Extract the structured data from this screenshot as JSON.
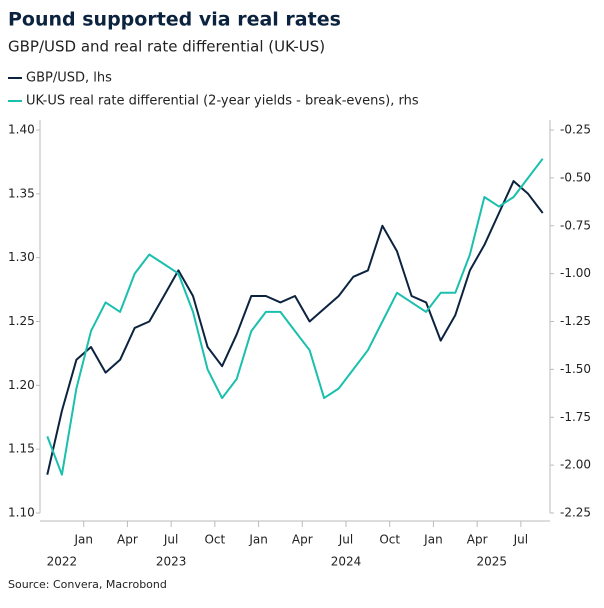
{
  "chart_data": {
    "type": "line",
    "title": "Pound supported via real rates",
    "subtitle": "GBP/USD and real rate differential (UK-US)",
    "source": "Source: Convera, Macrobond",
    "x": [
      "2022-10",
      "2022-11",
      "2022-12",
      "2023-01",
      "2023-02",
      "2023-03",
      "2023-04",
      "2023-05",
      "2023-06",
      "2023-07",
      "2023-08",
      "2023-09",
      "2023-10",
      "2023-11",
      "2023-12",
      "2024-01",
      "2024-02",
      "2024-03",
      "2024-04",
      "2024-05",
      "2024-06",
      "2024-07",
      "2024-08",
      "2024-09",
      "2024-10",
      "2024-11",
      "2024-12",
      "2025-01",
      "2025-02",
      "2025-03",
      "2025-04",
      "2025-05",
      "2025-06",
      "2025-07",
      "2025-08"
    ],
    "series": [
      {
        "name": "GBP/USD, lhs",
        "color": "#0c2340",
        "axis": "y",
        "values": [
          1.13,
          1.18,
          1.22,
          1.23,
          1.21,
          1.22,
          1.245,
          1.25,
          1.27,
          1.29,
          1.27,
          1.23,
          1.215,
          1.24,
          1.27,
          1.27,
          1.265,
          1.27,
          1.25,
          1.26,
          1.27,
          1.285,
          1.29,
          1.325,
          1.305,
          1.27,
          1.265,
          1.235,
          1.255,
          1.29,
          1.31,
          1.335,
          1.36,
          1.35,
          1.335
        ]
      },
      {
        "name": "UK-US real rate differential (2-year yields - break-evens), rhs",
        "color": "#1bbfae",
        "axis": "y2",
        "values": [
          -1.85,
          -2.05,
          -1.6,
          -1.3,
          -1.15,
          -1.2,
          -1.0,
          -0.9,
          -0.95,
          -1.0,
          -1.2,
          -1.5,
          -1.65,
          -1.55,
          -1.3,
          -1.2,
          -1.2,
          -1.3,
          -1.4,
          -1.65,
          -1.6,
          -1.5,
          -1.4,
          -1.25,
          -1.1,
          -1.15,
          -1.2,
          -1.1,
          -1.1,
          -0.9,
          -0.6,
          -0.65,
          -0.6,
          -0.5,
          -0.4
        ]
      }
    ],
    "xlim": [
      "2022-10",
      "2025-09"
    ],
    "xticks": [
      {
        "value": "2023-01",
        "label": "Jan"
      },
      {
        "value": "2023-04",
        "label": "Apr"
      },
      {
        "value": "2023-07",
        "label": "Jul"
      },
      {
        "value": "2023-10",
        "label": "Oct"
      },
      {
        "value": "2024-01",
        "label": "Jan"
      },
      {
        "value": "2024-04",
        "label": "Apr"
      },
      {
        "value": "2024-07",
        "label": "Jul"
      },
      {
        "value": "2024-10",
        "label": "Oct"
      },
      {
        "value": "2025-01",
        "label": "Jan"
      },
      {
        "value": "2025-04",
        "label": "Apr"
      },
      {
        "value": "2025-07",
        "label": "Jul"
      }
    ],
    "years": [
      "2022",
      "2023",
      "2024",
      "2025"
    ],
    "ylim": [
      1.1,
      1.4
    ],
    "yticks": [
      {
        "value": 1.1,
        "label": "1.10"
      },
      1.15,
      {
        "value": 1.2,
        "label": "1.20"
      },
      1.25,
      {
        "value": 1.3,
        "label": "1.30"
      },
      1.35,
      {
        "value": 1.4,
        "label": "1.40"
      }
    ],
    "y2lim": [
      -2.25,
      -0.25
    ],
    "y2ticks": [
      -0.25,
      {
        "value": -0.5,
        "label": "-0.50"
      },
      -0.75,
      {
        "value": -1,
        "label": "-1.00"
      },
      -1.25,
      {
        "value": -1.5,
        "label": "-1.50"
      },
      -1.75,
      {
        "value": -2,
        "label": "-2.00"
      },
      -2.25
    ]
  }
}
